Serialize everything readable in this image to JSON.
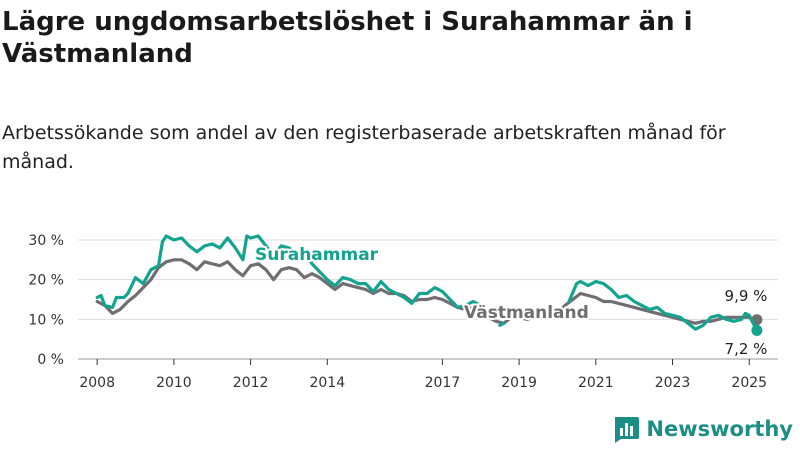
{
  "title": "Lägre ungdomsarbetslöshet i Surahammar än i Västmanland",
  "subtitle": "Arbetssökande som andel av den registerbaserade arbetskraften månad för månad.",
  "brand": {
    "name": "Newsworthy"
  },
  "chart_data": {
    "type": "line",
    "title": "",
    "xlabel": "",
    "ylabel": "",
    "xlim": [
      2007.5,
      2025.75
    ],
    "ylim": [
      0,
      32
    ],
    "x_ticks": [
      {
        "value": 2008,
        "label": "2008"
      },
      {
        "value": 2010,
        "label": "2010"
      },
      {
        "value": 2012,
        "label": "2012"
      },
      {
        "value": 2014,
        "label": "2014"
      },
      {
        "value": 2017,
        "label": "2017"
      },
      {
        "value": 2019,
        "label": "2019"
      },
      {
        "value": 2021,
        "label": "2021"
      },
      {
        "value": 2023,
        "label": "2023"
      },
      {
        "value": 2025,
        "label": "2025"
      }
    ],
    "y_ticks": [
      {
        "value": 0,
        "label": "0 %"
      },
      {
        "value": 10,
        "label": "10 %"
      },
      {
        "value": 20,
        "label": "20 %"
      },
      {
        "value": 30,
        "label": "30 %"
      }
    ],
    "grid": true,
    "series": [
      {
        "name": "Västmanland",
        "color": "#6e6e73",
        "points": [
          [
            2008.0,
            14.5
          ],
          [
            2008.2,
            13.5
          ],
          [
            2008.4,
            11.5
          ],
          [
            2008.6,
            12.5
          ],
          [
            2008.8,
            14.5
          ],
          [
            2009.0,
            16.0
          ],
          [
            2009.2,
            18.0
          ],
          [
            2009.4,
            20.0
          ],
          [
            2009.6,
            23.0
          ],
          [
            2009.8,
            24.5
          ],
          [
            2010.0,
            25.0
          ],
          [
            2010.2,
            25.0
          ],
          [
            2010.4,
            24.0
          ],
          [
            2010.6,
            22.5
          ],
          [
            2010.8,
            24.5
          ],
          [
            2011.0,
            24.0
          ],
          [
            2011.2,
            23.5
          ],
          [
            2011.4,
            24.5
          ],
          [
            2011.6,
            22.5
          ],
          [
            2011.8,
            21.0
          ],
          [
            2012.0,
            23.5
          ],
          [
            2012.2,
            24.0
          ],
          [
            2012.4,
            22.5
          ],
          [
            2012.6,
            20.0
          ],
          [
            2012.8,
            22.5
          ],
          [
            2013.0,
            23.0
          ],
          [
            2013.2,
            22.5
          ],
          [
            2013.4,
            20.5
          ],
          [
            2013.6,
            21.5
          ],
          [
            2013.8,
            20.5
          ],
          [
            2014.0,
            19.0
          ],
          [
            2014.2,
            17.5
          ],
          [
            2014.4,
            19.0
          ],
          [
            2014.6,
            18.5
          ],
          [
            2014.8,
            18.0
          ],
          [
            2015.0,
            17.5
          ],
          [
            2015.2,
            16.5
          ],
          [
            2015.4,
            17.5
          ],
          [
            2015.6,
            16.5
          ],
          [
            2015.8,
            16.5
          ],
          [
            2016.0,
            16.0
          ],
          [
            2016.2,
            14.5
          ],
          [
            2016.4,
            15.0
          ],
          [
            2016.6,
            15.0
          ],
          [
            2016.8,
            15.5
          ],
          [
            2017.0,
            15.0
          ],
          [
            2017.2,
            14.0
          ],
          [
            2017.4,
            13.0
          ],
          [
            2017.6,
            12.5
          ],
          [
            2017.8,
            13.0
          ],
          [
            2018.0,
            12.0
          ],
          [
            2018.2,
            10.5
          ],
          [
            2018.4,
            9.5
          ],
          [
            2018.6,
            9.0
          ],
          [
            2018.8,
            10.5
          ],
          [
            2019.0,
            10.5
          ],
          [
            2019.2,
            10.0
          ],
          [
            2019.4,
            10.5
          ],
          [
            2019.6,
            10.5
          ],
          [
            2019.8,
            11.0
          ],
          [
            2020.0,
            11.5
          ],
          [
            2020.2,
            13.5
          ],
          [
            2020.4,
            15.0
          ],
          [
            2020.6,
            16.5
          ],
          [
            2020.8,
            16.0
          ],
          [
            2021.0,
            15.5
          ],
          [
            2021.2,
            14.5
          ],
          [
            2021.4,
            14.5
          ],
          [
            2021.6,
            14.0
          ],
          [
            2021.8,
            13.5
          ],
          [
            2022.0,
            13.0
          ],
          [
            2022.2,
            12.5
          ],
          [
            2022.4,
            12.0
          ],
          [
            2022.6,
            11.5
          ],
          [
            2022.8,
            11.0
          ],
          [
            2023.0,
            10.5
          ],
          [
            2023.2,
            10.0
          ],
          [
            2023.4,
            9.5
          ],
          [
            2023.6,
            9.0
          ],
          [
            2023.8,
            9.5
          ],
          [
            2024.0,
            9.5
          ],
          [
            2024.2,
            10.0
          ],
          [
            2024.4,
            10.5
          ],
          [
            2024.6,
            10.5
          ],
          [
            2024.8,
            10.5
          ],
          [
            2025.0,
            10.5
          ],
          [
            2025.2,
            9.9
          ]
        ],
        "end_value": 9.9,
        "end_label": "9,9 %"
      },
      {
        "name": "Surahammar",
        "color": "#14a38f",
        "points": [
          [
            2008.0,
            15.5
          ],
          [
            2008.1,
            16.0
          ],
          [
            2008.2,
            13.5
          ],
          [
            2008.4,
            13.0
          ],
          [
            2008.5,
            15.5
          ],
          [
            2008.7,
            15.5
          ],
          [
            2008.8,
            16.5
          ],
          [
            2009.0,
            20.5
          ],
          [
            2009.2,
            19.0
          ],
          [
            2009.4,
            22.5
          ],
          [
            2009.6,
            23.5
          ],
          [
            2009.7,
            29.5
          ],
          [
            2009.8,
            31.0
          ],
          [
            2010.0,
            30.0
          ],
          [
            2010.2,
            30.5
          ],
          [
            2010.4,
            28.5
          ],
          [
            2010.6,
            27.0
          ],
          [
            2010.8,
            28.5
          ],
          [
            2011.0,
            29.0
          ],
          [
            2011.2,
            28.0
          ],
          [
            2011.4,
            30.5
          ],
          [
            2011.6,
            28.0
          ],
          [
            2011.8,
            25.0
          ],
          [
            2011.9,
            31.0
          ],
          [
            2012.0,
            30.5
          ],
          [
            2012.2,
            31.0
          ],
          [
            2012.4,
            28.5
          ],
          [
            2012.6,
            26.0
          ],
          [
            2012.8,
            28.5
          ],
          [
            2013.0,
            28.0
          ],
          [
            2013.2,
            26.5
          ],
          [
            2013.4,
            27.0
          ],
          [
            2013.6,
            24.0
          ],
          [
            2013.8,
            22.0
          ],
          [
            2014.0,
            20.0
          ],
          [
            2014.2,
            18.5
          ],
          [
            2014.4,
            20.5
          ],
          [
            2014.6,
            20.0
          ],
          [
            2014.8,
            19.0
          ],
          [
            2015.0,
            19.0
          ],
          [
            2015.2,
            17.0
          ],
          [
            2015.4,
            19.5
          ],
          [
            2015.6,
            17.5
          ],
          [
            2015.8,
            16.5
          ],
          [
            2016.0,
            15.5
          ],
          [
            2016.2,
            14.0
          ],
          [
            2016.4,
            16.5
          ],
          [
            2016.6,
            16.5
          ],
          [
            2016.8,
            18.0
          ],
          [
            2017.0,
            17.0
          ],
          [
            2017.2,
            15.0
          ],
          [
            2017.4,
            13.0
          ],
          [
            2017.6,
            13.5
          ],
          [
            2017.8,
            14.5
          ],
          [
            2018.0,
            13.5
          ]
        ],
        "segments": [
          [
            [
              2018.5,
              8.5
            ],
            [
              2018.6,
              9.0
            ]
          ],
          [
            [
              2020.3,
              14.5
            ],
            [
              2020.5,
              19.0
            ],
            [
              2020.6,
              19.5
            ],
            [
              2020.8,
              18.5
            ],
            [
              2021.0,
              19.5
            ],
            [
              2021.2,
              19.0
            ],
            [
              2021.4,
              17.5
            ],
            [
              2021.6,
              15.5
            ],
            [
              2021.8,
              16.0
            ],
            [
              2022.0,
              14.5
            ],
            [
              2022.2,
              13.5
            ],
            [
              2022.4,
              12.5
            ],
            [
              2022.6,
              13.0
            ],
            [
              2022.8,
              11.5
            ],
            [
              2023.0,
              11.0
            ],
            [
              2023.2,
              10.5
            ],
            [
              2023.4,
              9.0
            ],
            [
              2023.6,
              7.5
            ],
            [
              2023.8,
              8.5
            ],
            [
              2024.0,
              10.5
            ],
            [
              2024.2,
              11.0
            ],
            [
              2024.4,
              10.0
            ],
            [
              2024.6,
              9.5
            ],
            [
              2024.8,
              10.0
            ],
            [
              2024.9,
              11.5
            ],
            [
              2025.0,
              11.0
            ],
            [
              2025.1,
              9.0
            ],
            [
              2025.2,
              7.2
            ]
          ]
        ],
        "end_value": 7.2,
        "end_label": "7,2 %"
      }
    ],
    "labels": [
      {
        "series": "Surahammar",
        "text": "Surahammar"
      },
      {
        "series": "Västmanland",
        "text": "Västmanland"
      }
    ]
  }
}
